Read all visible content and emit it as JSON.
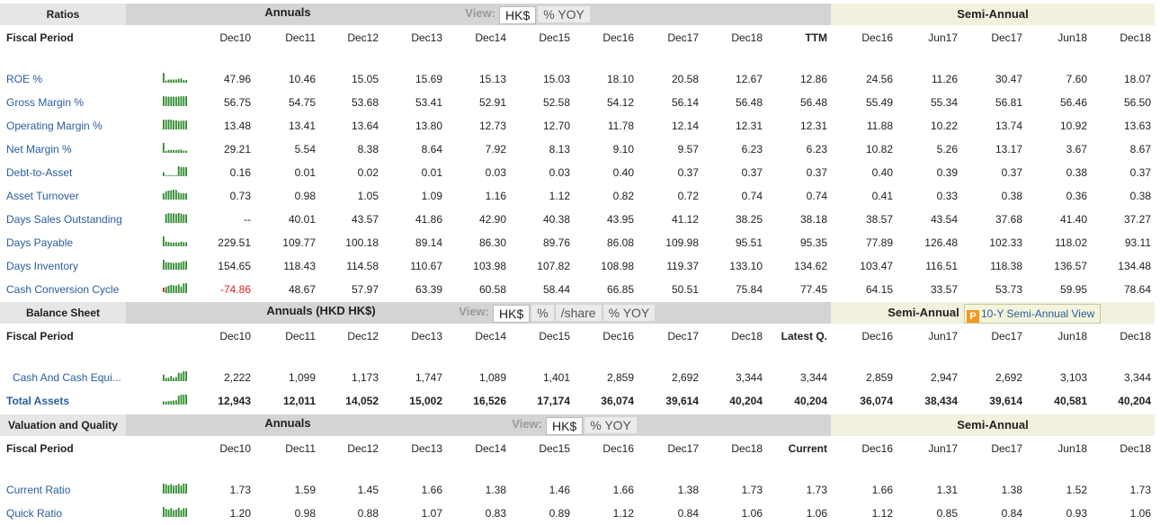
{
  "sections": [
    {
      "title": "Ratios",
      "annuals_label": "Annuals",
      "view_label": "View:",
      "view_options": [
        "HK$",
        "% YOY"
      ],
      "semi_label": "Semi-Annual",
      "period_label": "Fiscal Period",
      "periods": [
        "Dec10",
        "Dec11",
        "Dec12",
        "Dec13",
        "Dec14",
        "Dec15",
        "Dec16",
        "Dec17",
        "Dec18",
        "TTM"
      ],
      "semi_periods": [
        "Dec16",
        "Jun17",
        "Dec17",
        "Jun18",
        "Dec18"
      ],
      "rows": [
        {
          "label": "ROE %",
          "values": [
            "47.96",
            "10.46",
            "15.05",
            "15.69",
            "15.13",
            "15.03",
            "18.10",
            "20.58",
            "12.67",
            "12.86"
          ],
          "semi_values": [
            "24.56",
            "11.26",
            "30.47",
            "7.60",
            "18.07"
          ]
        },
        {
          "label": "Gross Margin %",
          "values": [
            "56.75",
            "54.75",
            "53.68",
            "53.41",
            "52.91",
            "52.58",
            "54.12",
            "56.14",
            "56.48",
            "56.48"
          ],
          "semi_values": [
            "55.49",
            "55.34",
            "56.81",
            "56.46",
            "56.50"
          ]
        },
        {
          "label": "Operating Margin %",
          "values": [
            "13.48",
            "13.41",
            "13.64",
            "13.80",
            "12.73",
            "12.70",
            "11.78",
            "12.14",
            "12.31",
            "12.31"
          ],
          "semi_values": [
            "11.88",
            "10.22",
            "13.74",
            "10.92",
            "13.63"
          ]
        },
        {
          "label": "Net Margin %",
          "values": [
            "29.21",
            "5.54",
            "8.38",
            "8.64",
            "7.92",
            "8.13",
            "9.10",
            "9.57",
            "6.23",
            "6.23"
          ],
          "semi_values": [
            "10.82",
            "5.26",
            "13.17",
            "3.67",
            "8.67"
          ]
        },
        {
          "label": "Debt-to-Asset",
          "values": [
            "0.16",
            "0.01",
            "0.02",
            "0.01",
            "0.03",
            "0.03",
            "0.40",
            "0.37",
            "0.37",
            "0.37"
          ],
          "semi_values": [
            "0.40",
            "0.39",
            "0.37",
            "0.38",
            "0.37"
          ]
        },
        {
          "label": "Asset Turnover",
          "values": [
            "0.73",
            "0.98",
            "1.05",
            "1.09",
            "1.16",
            "1.12",
            "0.82",
            "0.72",
            "0.74",
            "0.74"
          ],
          "semi_values": [
            "0.41",
            "0.33",
            "0.38",
            "0.36",
            "0.38"
          ]
        },
        {
          "label": "Days Sales Outstanding",
          "values": [
            "--",
            "40.01",
            "43.57",
            "41.86",
            "42.90",
            "40.38",
            "43.95",
            "41.12",
            "38.25",
            "38.18"
          ],
          "semi_values": [
            "38.57",
            "43.54",
            "37.68",
            "41.40",
            "37.27"
          ]
        },
        {
          "label": "Days Payable",
          "values": [
            "229.51",
            "109.77",
            "100.18",
            "89.14",
            "86.30",
            "89.76",
            "86.08",
            "109.98",
            "95.51",
            "95.35"
          ],
          "semi_values": [
            "77.89",
            "126.48",
            "102.33",
            "118.02",
            "93.11"
          ]
        },
        {
          "label": "Days Inventory",
          "values": [
            "154.65",
            "118.43",
            "114.58",
            "110.67",
            "103.98",
            "107.82",
            "108.98",
            "119.37",
            "133.10",
            "134.62"
          ],
          "semi_values": [
            "103.47",
            "116.51",
            "118.38",
            "136.57",
            "134.48"
          ]
        },
        {
          "label": "Cash Conversion Cycle",
          "values": [
            "-74.86",
            "48.67",
            "57.97",
            "63.39",
            "60.58",
            "58.44",
            "66.85",
            "50.51",
            "75.84",
            "77.45"
          ],
          "semi_values": [
            "64.15",
            "33.57",
            "53.73",
            "59.95",
            "78.64"
          ]
        }
      ]
    },
    {
      "title": "Balance Sheet",
      "annuals_label": "Annuals (HKD HK$)",
      "view_label": "View:",
      "view_options": [
        "HK$",
        "%",
        "/share",
        "% YOY"
      ],
      "semi_label": "Semi-Annual",
      "button_icon": "P",
      "button_label": "10-Y Semi-Annual View",
      "period_label": "Fiscal Period",
      "periods": [
        "Dec10",
        "Dec11",
        "Dec12",
        "Dec13",
        "Dec14",
        "Dec15",
        "Dec16",
        "Dec17",
        "Dec18",
        "Latest Q."
      ],
      "semi_periods": [
        "Dec16",
        "Jun17",
        "Dec17",
        "Jun18",
        "Dec18"
      ],
      "rows": [
        {
          "label": "Cash And Cash Equi...",
          "values": [
            "2,222",
            "1,099",
            "1,173",
            "1,747",
            "1,089",
            "1,401",
            "2,859",
            "2,692",
            "3,344",
            "3,344"
          ],
          "semi_values": [
            "2,859",
            "2,947",
            "2,692",
            "3,103",
            "3,344"
          ]
        },
        {
          "label": "Total Assets",
          "bold": true,
          "values": [
            "12,943",
            "12,011",
            "14,052",
            "15,002",
            "16,526",
            "17,174",
            "36,074",
            "39,614",
            "40,204",
            "40,204"
          ],
          "semi_values": [
            "36,074",
            "38,434",
            "39,614",
            "40,581",
            "40,204"
          ]
        }
      ]
    },
    {
      "title": "Valuation and Quality",
      "annuals_label": "Annuals",
      "view_label": "View:",
      "view_options": [
        "HK$",
        "% YOY"
      ],
      "semi_label": "Semi-Annual",
      "period_label": "Fiscal Period",
      "periods": [
        "Dec10",
        "Dec11",
        "Dec12",
        "Dec13",
        "Dec14",
        "Dec15",
        "Dec16",
        "Dec17",
        "Dec18",
        "Current"
      ],
      "semi_periods": [
        "Dec16",
        "Jun17",
        "Dec17",
        "Jun18",
        "Dec18"
      ],
      "rows": [
        {
          "label": "Current Ratio",
          "values": [
            "1.73",
            "1.59",
            "1.45",
            "1.66",
            "1.38",
            "1.46",
            "1.66",
            "1.38",
            "1.73",
            "1.73"
          ],
          "semi_values": [
            "1.66",
            "1.31",
            "1.38",
            "1.52",
            "1.73"
          ]
        },
        {
          "label": "Quick Ratio",
          "values": [
            "1.20",
            "0.98",
            "0.88",
            "1.07",
            "0.83",
            "0.89",
            "1.12",
            "0.84",
            "1.06",
            "1.06"
          ],
          "semi_values": [
            "1.12",
            "0.85",
            "0.84",
            "0.93",
            "1.06"
          ]
        }
      ]
    }
  ]
}
